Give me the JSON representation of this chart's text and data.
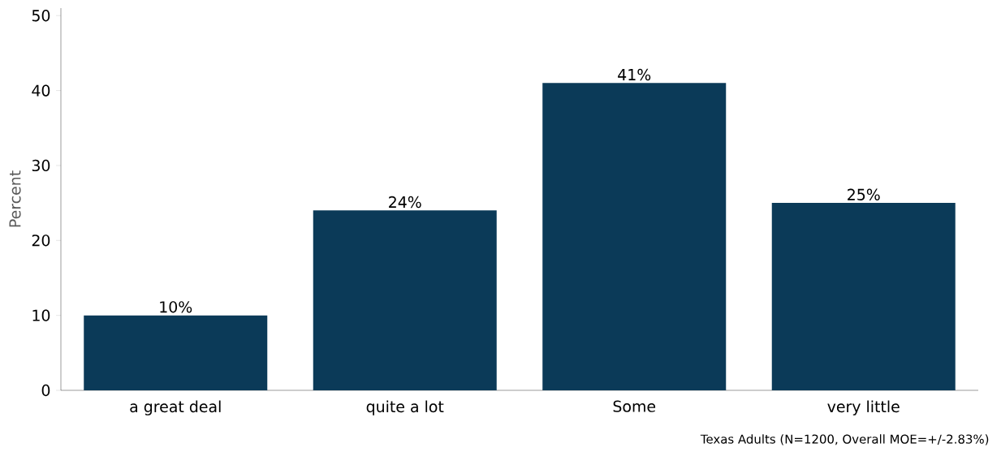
{
  "chart_data": {
    "type": "bar",
    "categories": [
      "a great deal",
      "quite a lot",
      "Some",
      "very little"
    ],
    "values": [
      10,
      24,
      41,
      25
    ],
    "value_labels": [
      "10%",
      "24%",
      "41%",
      "25%"
    ],
    "color": "#0b3a58",
    "ylabel": "Percent",
    "ylim": [
      0,
      51
    ],
    "yticks": [
      0,
      10,
      20,
      30,
      40,
      50
    ],
    "annotations": [
      "Texas Adults (N=1200, Overall MOE=+/-2.83%)"
    ]
  }
}
